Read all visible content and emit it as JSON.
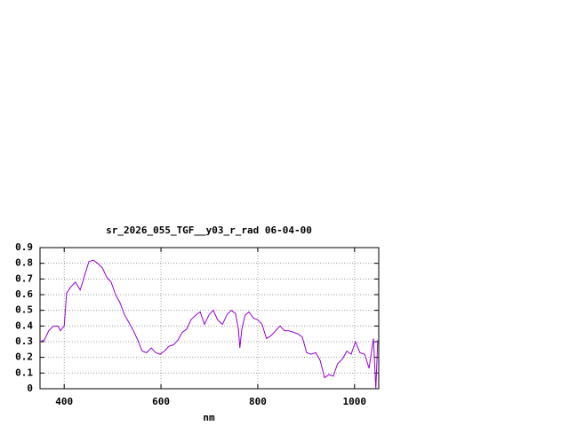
{
  "chart_data": {
    "type": "line",
    "title": "sr_2026_055_TGF__y03_r_rad 06-04-00",
    "x_label": "nm",
    "xlim": [
      350,
      1050
    ],
    "xticks": [
      400,
      600,
      800,
      1000
    ],
    "ylim": [
      0,
      0.9
    ],
    "yticks": [
      0,
      0.1,
      0.2,
      0.3,
      0.4,
      0.5,
      0.6,
      0.7,
      0.8,
      0.9
    ],
    "grid": true,
    "series": [
      {
        "color": "#9400d3",
        "x": [
          350,
          359,
          368,
          378,
          387,
          392,
          400,
          405,
          414,
          423,
          433,
          442,
          451,
          460,
          469,
          479,
          488,
          497,
          506,
          515,
          525,
          534,
          543,
          552,
          561,
          570,
          580,
          589,
          598,
          607,
          616,
          626,
          635,
          644,
          653,
          662,
          672,
          681,
          690,
          699,
          708,
          717,
          727,
          736,
          745,
          754,
          760,
          763,
          767,
          774,
          782,
          791,
          800,
          809,
          818,
          828,
          837,
          846,
          855,
          864,
          874,
          883,
          892,
          901,
          910,
          920,
          929,
          938,
          947,
          956,
          965,
          975,
          984,
          993,
          1002,
          1011,
          1021,
          1030,
          1039,
          1044,
          1048
        ],
        "values": [
          0.3,
          0.31,
          0.37,
          0.4,
          0.4,
          0.37,
          0.4,
          0.61,
          0.65,
          0.68,
          0.63,
          0.72,
          0.81,
          0.82,
          0.8,
          0.77,
          0.71,
          0.68,
          0.6,
          0.55,
          0.47,
          0.42,
          0.37,
          0.31,
          0.24,
          0.23,
          0.26,
          0.23,
          0.22,
          0.24,
          0.27,
          0.28,
          0.31,
          0.36,
          0.38,
          0.44,
          0.47,
          0.49,
          0.41,
          0.47,
          0.5,
          0.44,
          0.41,
          0.47,
          0.5,
          0.48,
          0.38,
          0.26,
          0.38,
          0.47,
          0.49,
          0.45,
          0.44,
          0.41,
          0.32,
          0.34,
          0.37,
          0.4,
          0.37,
          0.37,
          0.36,
          0.35,
          0.33,
          0.23,
          0.22,
          0.23,
          0.18,
          0.07,
          0.09,
          0.08,
          0.16,
          0.19,
          0.24,
          0.22,
          0.3,
          0.23,
          0.22,
          0.13,
          0.32,
          0,
          0.31
        ]
      }
    ]
  }
}
